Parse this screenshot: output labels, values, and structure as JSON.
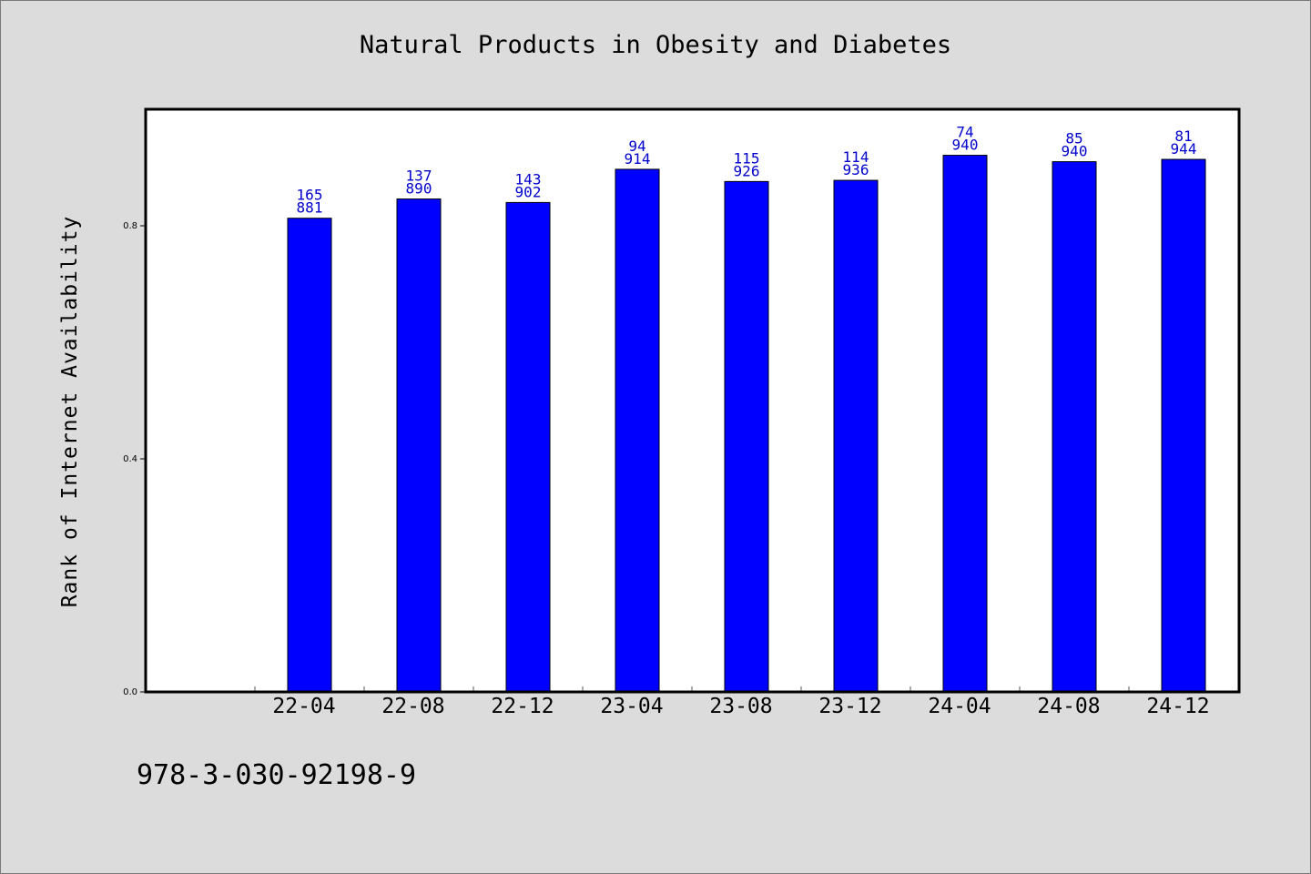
{
  "chart_data": {
    "type": "bar",
    "title": "Natural Products in Obesity and Diabetes",
    "ylabel": "Rank of Internet Availability",
    "xlabel": "",
    "categories": [
      "22-04",
      "22-08",
      "22-12",
      "23-04",
      "23-08",
      "23-12",
      "24-04",
      "24-08",
      "24-12"
    ],
    "values": [
      0.813,
      0.846,
      0.84,
      0.897,
      0.876,
      0.878,
      0.921,
      0.91,
      0.914
    ],
    "bar_labels_top": [
      "165",
      "137",
      "143",
      "94",
      "115",
      "114",
      "74",
      "85",
      "81"
    ],
    "bar_labels_bottom": [
      "881",
      "890",
      "902",
      "914",
      "926",
      "936",
      "940",
      "940",
      "944"
    ],
    "yticks": [
      "0.0",
      "0.4",
      "0.8"
    ],
    "ylim": [
      0,
      1.0
    ],
    "grid": false,
    "legend": "none",
    "colors": {
      "bar": "#0000ff",
      "label": "#0000cc",
      "background": "#dcdcdc",
      "plot": "#ffffff"
    }
  },
  "footer": {
    "isbn": "978-3-030-92198-9"
  }
}
